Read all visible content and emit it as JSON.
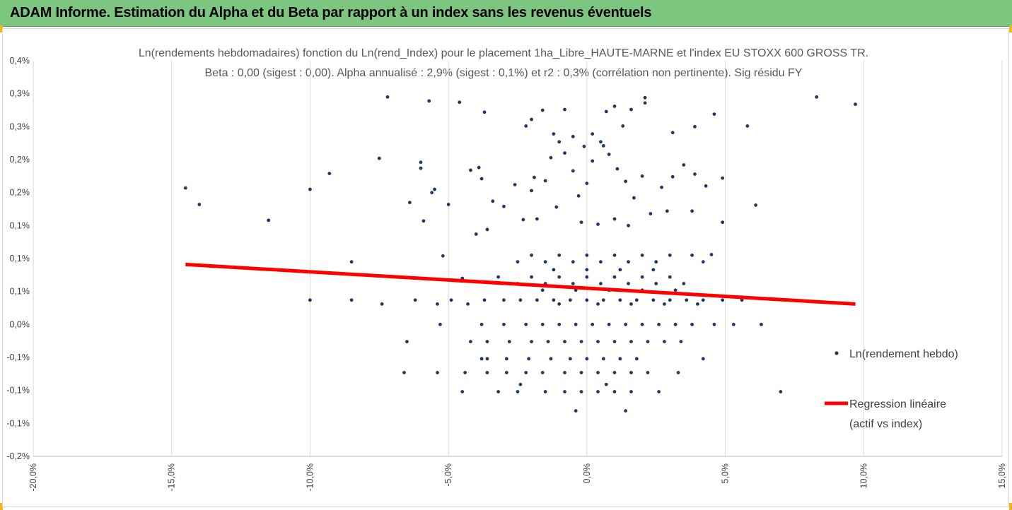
{
  "banner": {
    "title": "ADAM Informe. Estimation du Alpha et du Beta par rapport à un index sans les revenus éventuels"
  },
  "colors": {
    "banner": "#7dc67f",
    "accent": "#f2b617",
    "points": "#1f3864",
    "regression": "#ff0000",
    "grid": "#d9d9d9"
  },
  "chart_data": {
    "type": "scatter",
    "title": "Ln(rendements hebdomadaires) fonction du Ln(rend_Index) pour le placement 1ha_Libre_HAUTE-MARNE et l'index EU STOXX 600 GROSS TR.",
    "subtitle": "Beta : 0,00 (sigest : 0,00). Alpha annualisé : 2,9% (sigest : 0,1%) et r2 : 0,3% (corrélation non pertinente). Sig résidu FY",
    "xlim": [
      -20,
      15
    ],
    "ylim": [
      -0.2,
      0.4
    ],
    "x_ticks": [
      -20,
      -15,
      -10,
      -5,
      0,
      5,
      10,
      15
    ],
    "x_tick_labels": [
      "-20,0%",
      "-15,0%",
      "-10,0%",
      "-5,0%",
      "0,0%",
      "5,0%",
      "10,0%",
      "15,0%"
    ],
    "y_ticks": [
      0.4,
      0.35,
      0.3,
      0.25,
      0.2,
      0.15,
      0.1,
      0.05,
      0.0,
      -0.05,
      -0.1,
      -0.15,
      -0.2
    ],
    "y_tick_labels": [
      "0,4%",
      "0,3%",
      "0,3%",
      "0,2%",
      "0,2%",
      "0,1%",
      "0,1%",
      "0,1%",
      "0,0%",
      "-0,1%",
      "-0,1%",
      "-0,1%",
      "-0,2%"
    ],
    "grid": "vertical",
    "legend_position": "right",
    "legend": [
      {
        "name": "Ln(rendement hebdo)",
        "marker": "dot"
      },
      {
        "name": "Regression linéaire",
        "name2": "(actif vs index)",
        "marker": "line"
      }
    ],
    "regression": {
      "x": [
        -14.5,
        9.7
      ],
      "y": [
        0.091,
        0.031
      ]
    },
    "series": [
      {
        "name": "Ln(rendement hebdo)",
        "points": [
          [
            -14.5,
            0.207
          ],
          [
            -14.0,
            0.182
          ],
          [
            -11.5,
            0.158
          ],
          [
            -10.0,
            0.205
          ],
          [
            -9.3,
            0.229
          ],
          [
            -7.5,
            0.252
          ],
          [
            -7.2,
            0.345
          ],
          [
            -5.7,
            0.339
          ],
          [
            -4.6,
            0.337
          ],
          [
            -3.7,
            0.322
          ],
          [
            -6.0,
            0.246
          ],
          [
            -6.0,
            0.237
          ],
          [
            -5.5,
            0.205
          ],
          [
            -5.6,
            0.2
          ],
          [
            -6.4,
            0.185
          ],
          [
            -5.9,
            0.157
          ],
          [
            -5.0,
            0.182
          ],
          [
            -4.2,
            0.234
          ],
          [
            -3.9,
            0.238
          ],
          [
            -3.8,
            0.221
          ],
          [
            -3.4,
            0.187
          ],
          [
            -3.6,
            0.144
          ],
          [
            -4.0,
            0.137
          ],
          [
            -3.0,
            0.179
          ],
          [
            -2.6,
            0.212
          ],
          [
            -2.0,
            0.203
          ],
          [
            -1.9,
            0.223
          ],
          [
            -1.5,
            0.218
          ],
          [
            -1.3,
            0.253
          ],
          [
            -1.0,
            0.277
          ],
          [
            -0.8,
            0.26
          ],
          [
            -0.5,
            0.233
          ],
          [
            -0.3,
            0.195
          ],
          [
            -0.1,
            0.27
          ],
          [
            0.2,
            0.248
          ],
          [
            0.5,
            0.277
          ],
          [
            0.8,
            0.258
          ],
          [
            1.1,
            0.236
          ],
          [
            1.4,
            0.217
          ],
          [
            1.7,
            0.192
          ],
          [
            2.0,
            0.225
          ],
          [
            2.1,
            0.344
          ],
          [
            2.1,
            0.336
          ],
          [
            1.6,
            0.326
          ],
          [
            1.0,
            0.331
          ],
          [
            0.7,
            0.323
          ],
          [
            -0.8,
            0.326
          ],
          [
            -1.6,
            0.325
          ],
          [
            -2.0,
            0.311
          ],
          [
            -2.2,
            0.301
          ],
          [
            0.2,
            0.289
          ],
          [
            0.6,
            0.271
          ],
          [
            -1.2,
            0.289
          ],
          [
            -0.5,
            0.285
          ],
          [
            1.3,
            0.301
          ],
          [
            -0.2,
            0.155
          ],
          [
            0.4,
            0.152
          ],
          [
            1.0,
            0.16
          ],
          [
            1.5,
            0.15
          ],
          [
            2.3,
            0.168
          ],
          [
            2.7,
            0.208
          ],
          [
            3.1,
            0.224
          ],
          [
            3.5,
            0.242
          ],
          [
            3.9,
            0.228
          ],
          [
            4.3,
            0.21
          ],
          [
            4.6,
            0.319
          ],
          [
            3.9,
            0.3
          ],
          [
            3.1,
            0.291
          ],
          [
            4.9,
            0.222
          ],
          [
            6.1,
            0.181
          ],
          [
            5.8,
            0.301
          ],
          [
            8.3,
            0.345
          ],
          [
            9.7,
            0.334
          ],
          [
            4.9,
            0.155
          ],
          [
            3.8,
            0.172
          ],
          [
            -1.8,
            0.16
          ],
          [
            -2.3,
            0.159
          ],
          [
            -1.1,
            0.178
          ],
          [
            2.9,
            0.172
          ],
          [
            0.0,
            0.214
          ],
          [
            -10.0,
            0.037
          ],
          [
            -8.5,
            0.037
          ],
          [
            -7.4,
            0.031
          ],
          [
            -6.2,
            0.037
          ],
          [
            -5.4,
            0.031
          ],
          [
            -4.9,
            0.037
          ],
          [
            -4.3,
            0.031
          ],
          [
            -3.7,
            0.037
          ],
          [
            -3.0,
            0.037
          ],
          [
            -2.4,
            0.037
          ],
          [
            -1.8,
            0.037
          ],
          [
            -1.2,
            0.037
          ],
          [
            -0.6,
            0.037
          ],
          [
            0.0,
            0.037
          ],
          [
            0.6,
            0.037
          ],
          [
            1.2,
            0.037
          ],
          [
            1.8,
            0.037
          ],
          [
            2.4,
            0.037
          ],
          [
            3.0,
            0.037
          ],
          [
            3.6,
            0.037
          ],
          [
            4.2,
            0.037
          ],
          [
            4.9,
            0.037
          ],
          [
            5.6,
            0.037
          ],
          [
            -2.5,
            0.062
          ],
          [
            -1.5,
            0.062
          ],
          [
            -0.5,
            0.062
          ],
          [
            0.5,
            0.062
          ],
          [
            1.5,
            0.062
          ],
          [
            2.5,
            0.062
          ],
          [
            3.5,
            0.062
          ],
          [
            -2.0,
            0.072
          ],
          [
            -1.0,
            0.072
          ],
          [
            0.0,
            0.072
          ],
          [
            1.0,
            0.072
          ],
          [
            2.0,
            0.072
          ],
          [
            -3.2,
            0.072
          ],
          [
            3.0,
            0.072
          ],
          [
            -2.0,
            0.105
          ],
          [
            -1.0,
            0.105
          ],
          [
            0.0,
            0.105
          ],
          [
            1.0,
            0.105
          ],
          [
            2.0,
            0.105
          ],
          [
            3.0,
            0.105
          ],
          [
            -2.5,
            0.095
          ],
          [
            -1.5,
            0.095
          ],
          [
            -0.5,
            0.095
          ],
          [
            0.5,
            0.095
          ],
          [
            1.5,
            0.095
          ],
          [
            2.5,
            0.095
          ],
          [
            -5.2,
            0.104
          ],
          [
            -8.5,
            0.095
          ],
          [
            -4.5,
            0.07
          ],
          [
            3.8,
            0.105
          ],
          [
            4.2,
            0.095
          ],
          [
            4.5,
            0.106
          ],
          [
            -3.8,
            0.0
          ],
          [
            -3.0,
            0.0
          ],
          [
            -2.2,
            0.0
          ],
          [
            -1.6,
            0.0
          ],
          [
            -1.0,
            0.0
          ],
          [
            -0.4,
            0.0
          ],
          [
            0.2,
            0.0
          ],
          [
            0.8,
            0.0
          ],
          [
            1.4,
            0.0
          ],
          [
            2.0,
            0.0
          ],
          [
            2.6,
            0.0
          ],
          [
            3.2,
            0.0
          ],
          [
            3.8,
            0.0
          ],
          [
            4.6,
            0.0
          ],
          [
            5.3,
            0.0
          ],
          [
            6.3,
            0.0
          ],
          [
            -5.3,
            0.0
          ],
          [
            -4.2,
            -0.026
          ],
          [
            -3.6,
            -0.026
          ],
          [
            -2.8,
            -0.026
          ],
          [
            -2.0,
            -0.026
          ],
          [
            -1.4,
            -0.026
          ],
          [
            -0.8,
            -0.026
          ],
          [
            -0.2,
            -0.026
          ],
          [
            0.4,
            -0.026
          ],
          [
            1.0,
            -0.026
          ],
          [
            1.6,
            -0.026
          ],
          [
            2.2,
            -0.026
          ],
          [
            2.8,
            -0.026
          ],
          [
            3.4,
            -0.026
          ],
          [
            -6.5,
            -0.026
          ],
          [
            -3.8,
            -0.052
          ],
          [
            -2.9,
            -0.052
          ],
          [
            -2.1,
            -0.052
          ],
          [
            -1.3,
            -0.052
          ],
          [
            -0.6,
            -0.052
          ],
          [
            0.0,
            -0.052
          ],
          [
            0.6,
            -0.052
          ],
          [
            1.2,
            -0.052
          ],
          [
            1.8,
            -0.052
          ],
          [
            4.2,
            -0.052
          ],
          [
            -4.4,
            -0.073
          ],
          [
            -3.6,
            -0.073
          ],
          [
            -2.9,
            -0.073
          ],
          [
            -2.2,
            -0.073
          ],
          [
            -1.6,
            -0.073
          ],
          [
            -0.8,
            -0.073
          ],
          [
            -0.2,
            -0.073
          ],
          [
            0.4,
            -0.073
          ],
          [
            1.0,
            -0.073
          ],
          [
            1.6,
            -0.073
          ],
          [
            2.2,
            -0.073
          ],
          [
            3.3,
            -0.073
          ],
          [
            -6.6,
            -0.073
          ],
          [
            -5.4,
            -0.073
          ],
          [
            -4.5,
            -0.102
          ],
          [
            -3.2,
            -0.102
          ],
          [
            -2.5,
            -0.102
          ],
          [
            -1.5,
            -0.102
          ],
          [
            -0.8,
            -0.102
          ],
          [
            -0.2,
            -0.102
          ],
          [
            0.4,
            -0.102
          ],
          [
            1.0,
            -0.102
          ],
          [
            1.6,
            -0.102
          ],
          [
            2.6,
            -0.102
          ],
          [
            7.0,
            -0.102
          ],
          [
            -0.4,
            -0.131
          ],
          [
            -3.6,
            -0.052
          ],
          [
            -2.4,
            -0.091
          ],
          [
            0.7,
            -0.091
          ],
          [
            1.4,
            -0.131
          ],
          [
            -1.0,
            0.031
          ],
          [
            0.4,
            0.031
          ],
          [
            1.6,
            0.031
          ],
          [
            2.8,
            0.031
          ],
          [
            4.0,
            0.031
          ],
          [
            -1.6,
            0.052
          ],
          [
            -0.4,
            0.052
          ],
          [
            0.8,
            0.052
          ],
          [
            2.0,
            0.052
          ],
          [
            3.2,
            0.052
          ],
          [
            -1.2,
            0.083
          ],
          [
            0.0,
            0.083
          ],
          [
            1.2,
            0.083
          ],
          [
            2.4,
            0.083
          ]
        ]
      }
    ]
  }
}
